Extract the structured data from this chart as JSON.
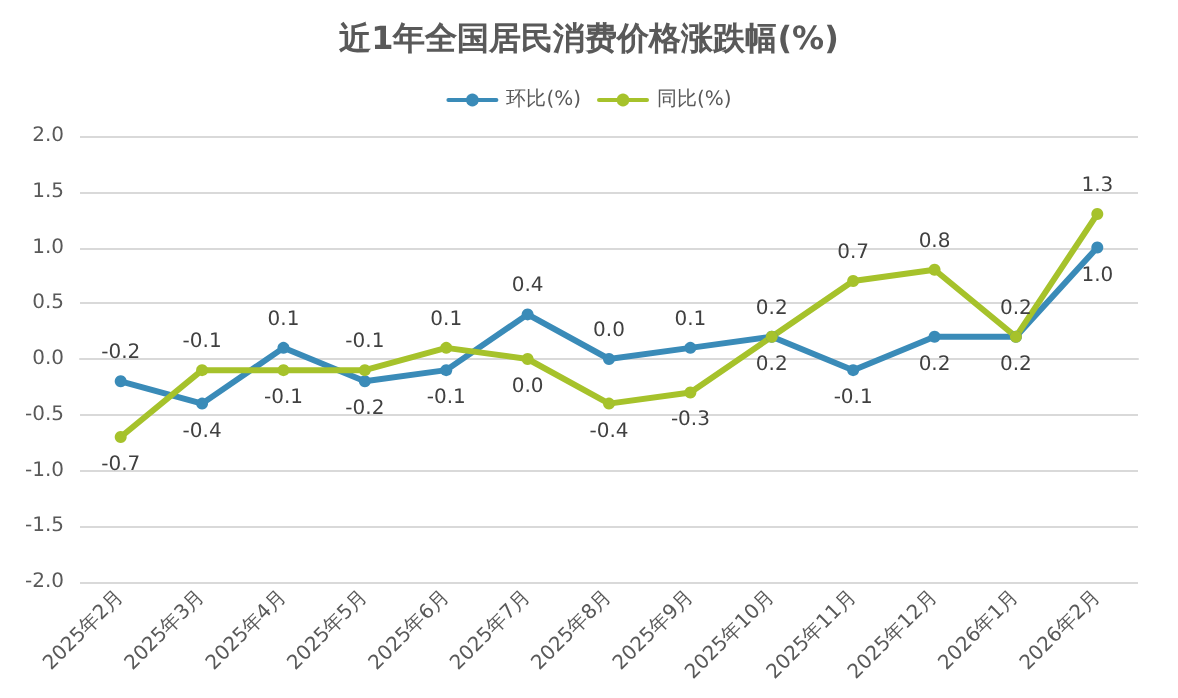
{
  "chart_data": {
    "type": "line",
    "title": "近1年全国居民消费价格涨跌幅(%)",
    "categories": [
      "2025年2月",
      "2025年3月",
      "2025年4月",
      "2025年5月",
      "2025年6月",
      "2025年7月",
      "2025年8月",
      "2025年9月",
      "2025年10月",
      "2025年11月",
      "2025年12月",
      "2026年1月",
      "2026年2月"
    ],
    "series": [
      {
        "name": "环比(%)",
        "color": "#3a8bb8",
        "values": [
          -0.2,
          -0.4,
          0.1,
          -0.2,
          -0.1,
          0.4,
          0.0,
          0.1,
          0.2,
          -0.1,
          0.2,
          0.2,
          1.0
        ],
        "value_labels": [
          "-0.2",
          "-0.4",
          "0.1",
          "-0.2",
          "-0.1",
          "0.4",
          "0.0",
          "0.1",
          "0.2",
          "-0.1",
          "0.2",
          "0.2",
          "1.0"
        ]
      },
      {
        "name": "同比(%)",
        "color": "#a6c22b",
        "values": [
          -0.7,
          -0.1,
          -0.1,
          -0.1,
          0.1,
          0.0,
          -0.4,
          -0.3,
          0.2,
          0.7,
          0.8,
          0.2,
          1.3
        ],
        "value_labels": [
          "-0.7",
          "-0.1",
          "-0.1",
          "-0.1",
          "0.1",
          "0.0",
          "-0.4",
          "-0.3",
          "0.2",
          "0.7",
          "0.8",
          "0.2",
          "1.3"
        ]
      }
    ],
    "ylim": [
      -2.0,
      2.0
    ],
    "yticks": [
      {
        "value": -2,
        "label": "-2.0"
      },
      {
        "value": -1.5,
        "label": "-1.5"
      },
      {
        "value": -1,
        "label": "-1.0"
      },
      {
        "value": -0.5,
        "label": "-0.5"
      },
      {
        "value": 0,
        "label": "0.0"
      },
      {
        "value": 0.5,
        "label": "0.5"
      },
      {
        "value": 1,
        "label": "1.0"
      },
      {
        "value": 1.5,
        "label": "1.5"
      },
      {
        "value": 2,
        "label": "2.0"
      }
    ],
    "grid": "y",
    "legend": "top",
    "marker": "circle",
    "line_style": "solid"
  }
}
